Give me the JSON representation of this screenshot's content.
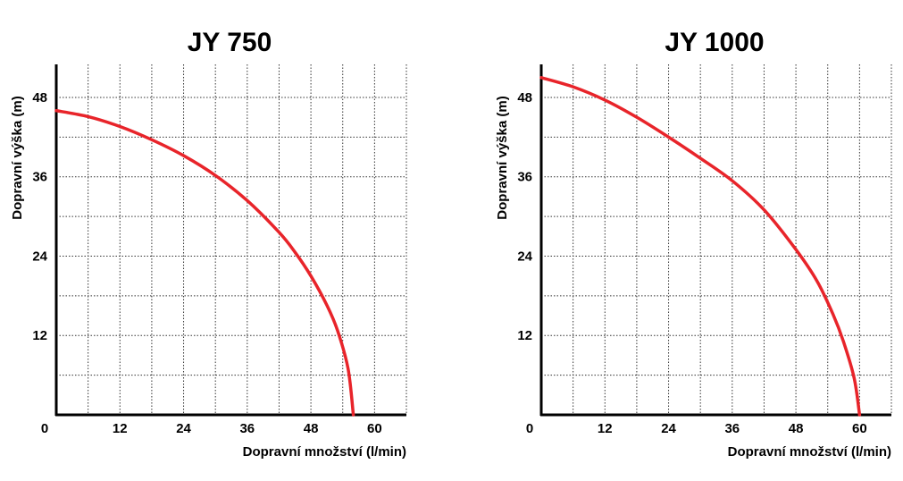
{
  "chart_data": [
    {
      "type": "line",
      "title": "JY 750",
      "xlabel": "Dopravní množství (l/min)",
      "ylabel": "Dopravní výška (m)",
      "xlim": [
        0,
        66
      ],
      "ylim": [
        0,
        53
      ],
      "xticks": [
        "0",
        "12",
        "24",
        "36",
        "48",
        "60"
      ],
      "yticks": [
        "12",
        "24",
        "36",
        "48"
      ],
      "grid": true,
      "series": [
        {
          "color": "#e8242a",
          "x": [
            0,
            6,
            12,
            18,
            24,
            30,
            36,
            42,
            45,
            48,
            51,
            53,
            55,
            56
          ],
          "y": [
            46,
            45.1,
            43.6,
            41.6,
            39.2,
            36.2,
            32.4,
            27.6,
            24.6,
            21,
            16.6,
            12.8,
            7,
            0
          ]
        }
      ]
    },
    {
      "type": "line",
      "title": "JY 1000",
      "xlabel": "Dopravní množství (l/min)",
      "ylabel": "Dopravní výška (m)",
      "xlim": [
        0,
        66
      ],
      "ylim": [
        0,
        53
      ],
      "xticks": [
        "0",
        "12",
        "24",
        "36",
        "48",
        "60"
      ],
      "yticks": [
        "12",
        "24",
        "36",
        "48"
      ],
      "grid": true,
      "series": [
        {
          "color": "#e8242a",
          "x": [
            0,
            6,
            12,
            18,
            24,
            30,
            36,
            42,
            48,
            52,
            55,
            57,
            59,
            60
          ],
          "y": [
            51,
            49.6,
            47.6,
            45,
            42,
            38.8,
            35.4,
            31,
            25,
            20.2,
            15.2,
            11,
            5.5,
            0
          ]
        }
      ]
    }
  ]
}
